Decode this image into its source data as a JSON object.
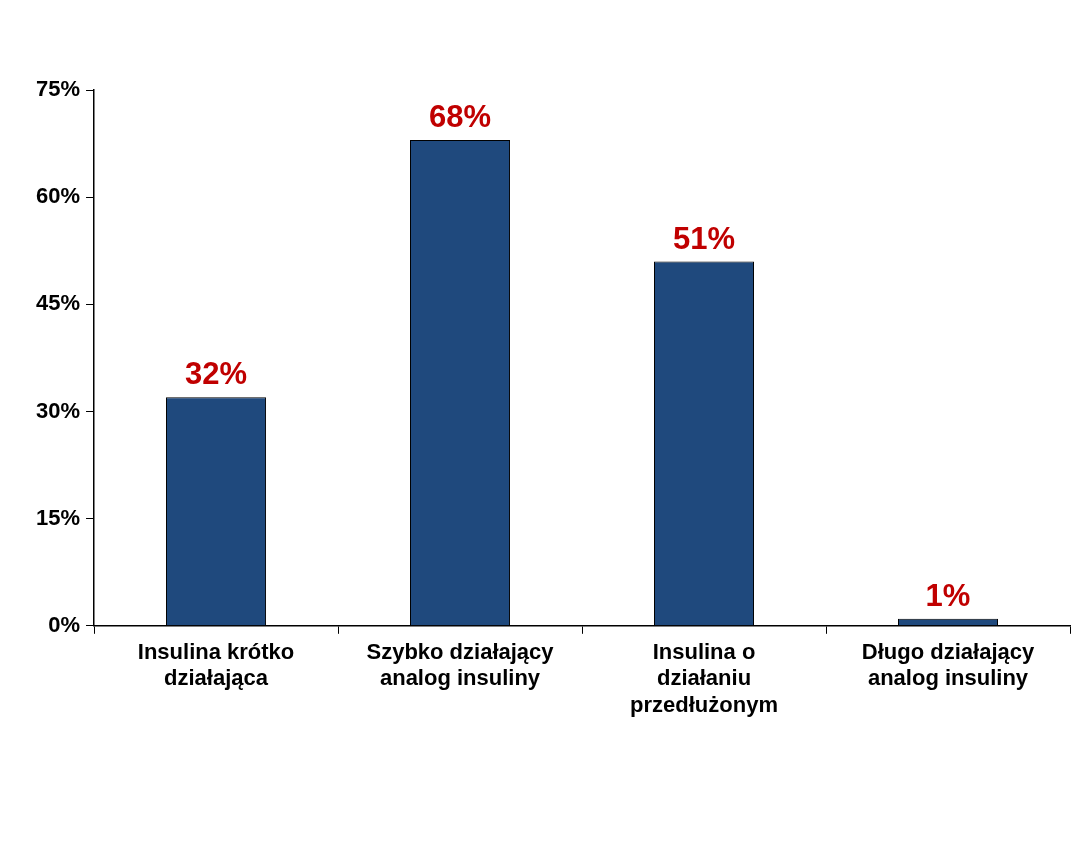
{
  "chart_data": {
    "type": "bar",
    "categories": [
      "Insulina krótko działająca",
      "Szybko działający analog insuliny",
      "Insulina o działaniu przedłużonym",
      "Długo działający analog insuliny"
    ],
    "values": [
      32,
      68,
      51,
      1
    ],
    "value_labels": [
      "32%",
      "68%",
      "51%",
      "1%"
    ],
    "color": "#1f497d",
    "ylim": [
      0,
      75
    ],
    "yticks": [
      {
        "value": 0,
        "label": "0%"
      },
      {
        "value": 15,
        "label": "15%"
      },
      {
        "value": 30,
        "label": "30%"
      },
      {
        "value": 45,
        "label": "45%"
      },
      {
        "value": 60,
        "label": "60%"
      },
      {
        "value": 75,
        "label": "75%"
      }
    ],
    "grid": false,
    "legend": false
  }
}
